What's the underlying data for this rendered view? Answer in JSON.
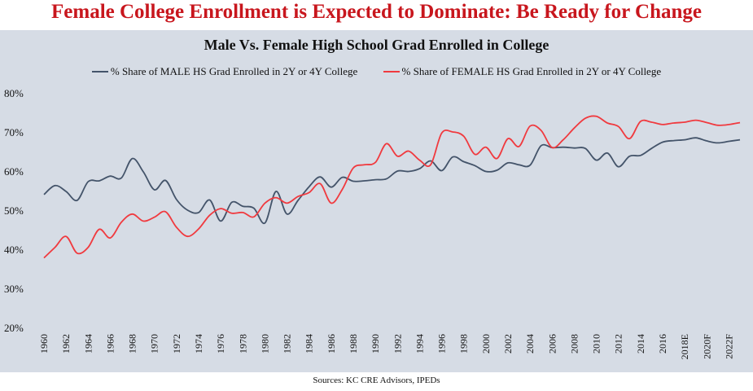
{
  "headline": "Female College Enrollment is Expected to Dominate: Be Ready for Change",
  "source": "Sources: KC CRE Advisors, IPEDs",
  "colors": {
    "male": "#44546a",
    "female": "#f03a3f",
    "headline": "#c8161d",
    "panel": "#d6dce5"
  },
  "chart_data": {
    "type": "line",
    "title": "Male Vs. Female High School Grad Enrolled in College",
    "xlabel": "",
    "ylabel": "",
    "ylim": [
      20,
      80
    ],
    "yticks": [
      "20%",
      "30%",
      "40%",
      "50%",
      "60%",
      "70%",
      "80%"
    ],
    "grid": false,
    "legend_position": "top",
    "x": [
      "1960",
      "1961",
      "1962",
      "1963",
      "1964",
      "1965",
      "1966",
      "1967",
      "1968",
      "1969",
      "1970",
      "1971",
      "1972",
      "1973",
      "1974",
      "1975",
      "1976",
      "1977",
      "1978",
      "1979",
      "1980",
      "1981",
      "1982",
      "1983",
      "1984",
      "1985",
      "1986",
      "1987",
      "1988",
      "1989",
      "1990",
      "1991",
      "1992",
      "1993",
      "1994",
      "1995",
      "1996",
      "1997",
      "1998",
      "1999",
      "2000",
      "2001",
      "2002",
      "2003",
      "2004",
      "2005",
      "2006",
      "2007",
      "2008",
      "2009",
      "2010",
      "2011",
      "2012",
      "2013",
      "2014",
      "2015",
      "2016",
      "2017",
      "2018E",
      "2019F",
      "2020F",
      "2021F",
      "2022F",
      "2023F"
    ],
    "xtick_labels": [
      "1960",
      "1962",
      "1964",
      "1966",
      "1968",
      "1970",
      "1972",
      "1974",
      "1976",
      "1978",
      "1980",
      "1982",
      "1984",
      "1986",
      "1988",
      "1990",
      "1992",
      "1994",
      "1996",
      "1998",
      "2000",
      "2002",
      "2004",
      "2006",
      "2008",
      "2010",
      "2012",
      "2014",
      "2016",
      "2018E",
      "2020F",
      "2022F"
    ],
    "series": [
      {
        "name": "% Share of MALE HS Grad Enrolled in 2Y or 4Y College",
        "color": "#44546a",
        "values": [
          54.0,
          56.3,
          54.8,
          52.5,
          57.3,
          57.5,
          58.7,
          58.2,
          63.2,
          59.8,
          55.2,
          57.6,
          52.7,
          50.0,
          49.4,
          52.6,
          47.2,
          52.0,
          51.0,
          50.5,
          46.7,
          54.8,
          49.0,
          52.5,
          56.0,
          58.5,
          55.9,
          58.4,
          57.4,
          57.5,
          57.8,
          58.0,
          60.0,
          59.9,
          60.6,
          62.6,
          60.1,
          63.6,
          62.4,
          61.4,
          59.9,
          60.2,
          62.1,
          61.6,
          61.5,
          66.5,
          66.0,
          66.1,
          65.9,
          65.8,
          62.8,
          64.6,
          61.1,
          63.8,
          64.0,
          65.8,
          67.4,
          67.8,
          68.0,
          68.5,
          67.7,
          67.2,
          67.6,
          68.0
        ]
      },
      {
        "name": "% Share of FEMALE HS Grad Enrolled in 2Y or 4Y College",
        "color": "#f03a3f",
        "values": [
          37.8,
          40.5,
          43.3,
          39.0,
          40.5,
          45.1,
          42.9,
          46.9,
          49.0,
          47.2,
          48.2,
          49.6,
          45.6,
          43.3,
          45.2,
          48.7,
          50.4,
          49.2,
          49.4,
          48.3,
          51.8,
          53.2,
          51.8,
          53.5,
          54.5,
          56.8,
          51.8,
          55.3,
          60.8,
          61.6,
          62.2,
          67.0,
          63.8,
          65.1,
          62.8,
          61.6,
          69.7,
          70.0,
          68.9,
          64.3,
          66.1,
          63.2,
          68.3,
          66.3,
          71.5,
          70.4,
          66.0,
          68.0,
          71.0,
          73.5,
          74.0,
          72.3,
          71.4,
          68.3,
          72.7,
          72.5,
          71.9,
          72.3,
          72.5,
          73.0,
          72.4,
          71.7,
          71.9,
          72.4
        ]
      }
    ]
  }
}
